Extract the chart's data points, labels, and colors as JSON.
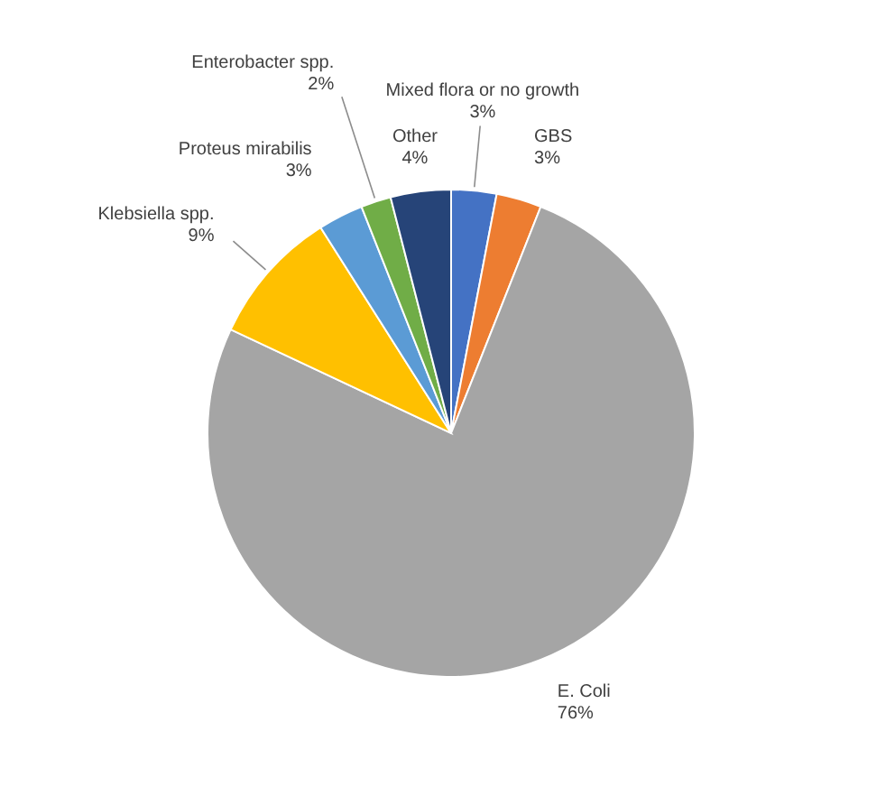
{
  "chart_data": {
    "type": "pie",
    "categories": [
      "Mixed flora or no growth",
      "GBS",
      "E. Coli",
      "Klebsiella spp.",
      "Proteus mirabilis",
      "Enterobacter spp.",
      "Other"
    ],
    "values": [
      3,
      3,
      76,
      9,
      3,
      2,
      4
    ],
    "colors": [
      "#4472c4",
      "#ed7d31",
      "#a5a5a5",
      "#ffc000",
      "#5b9bd5",
      "#70ad47",
      "#264478"
    ],
    "value_labels": [
      "3%",
      "3%",
      "76%",
      "9%",
      "3%",
      "2%",
      "4%"
    ]
  }
}
